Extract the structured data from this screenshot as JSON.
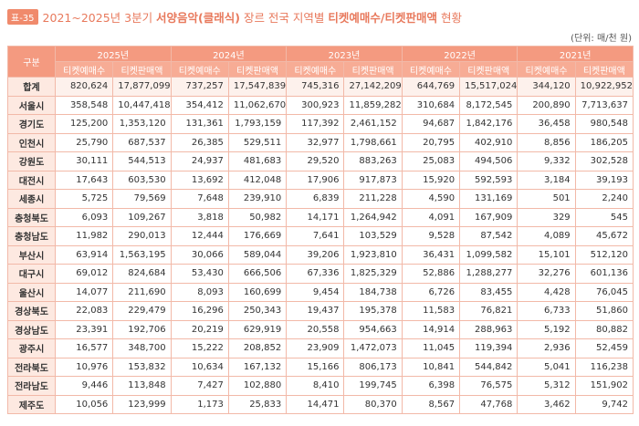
{
  "header": {
    "badge": "표-35",
    "title_parts": [
      "2021~2025년 3분기 ",
      "서양음악(클래식)",
      " 장르 전국 지역별 ",
      "티켓예매수/티켓판매액",
      " 현황"
    ],
    "unit": "(단위: 매/천 원)"
  },
  "table": {
    "corner": "구분",
    "years": [
      "2025년",
      "2024년",
      "2023년",
      "2022년",
      "2021년"
    ],
    "subcolumns": [
      "티켓예매수",
      "티켓판매액"
    ],
    "rows": [
      [
        "합계",
        "820,624",
        "17,877,099",
        "737,257",
        "17,547,839",
        "745,316",
        "27,142,209",
        "644,769",
        "15,517,024",
        "344,120",
        "10,922,952"
      ],
      [
        "서울시",
        "358,548",
        "10,447,418",
        "354,412",
        "11,062,670",
        "300,923",
        "11,859,282",
        "310,684",
        "8,172,545",
        "200,890",
        "7,713,637"
      ],
      [
        "경기도",
        "125,200",
        "1,353,120",
        "131,361",
        "1,793,159",
        "117,392",
        "2,461,152",
        "94,687",
        "1,842,176",
        "36,458",
        "980,548"
      ],
      [
        "인천시",
        "25,790",
        "687,537",
        "26,385",
        "529,511",
        "32,977",
        "1,798,661",
        "20,795",
        "402,910",
        "8,856",
        "186,205"
      ],
      [
        "강원도",
        "30,111",
        "544,513",
        "24,937",
        "481,683",
        "29,520",
        "883,263",
        "25,083",
        "494,506",
        "9,332",
        "302,528"
      ],
      [
        "대전시",
        "17,643",
        "603,530",
        "13,692",
        "412,048",
        "17,906",
        "917,873",
        "15,920",
        "592,593",
        "3,184",
        "39,193"
      ],
      [
        "세종시",
        "5,725",
        "79,569",
        "7,648",
        "239,910",
        "6,839",
        "211,228",
        "4,590",
        "131,169",
        "501",
        "2,240"
      ],
      [
        "충청북도",
        "6,093",
        "109,267",
        "3,818",
        "50,982",
        "14,171",
        "1,264,942",
        "4,091",
        "167,909",
        "329",
        "545"
      ],
      [
        "충청남도",
        "11,982",
        "290,013",
        "12,444",
        "176,669",
        "7,641",
        "103,529",
        "9,528",
        "87,542",
        "4,089",
        "45,672"
      ],
      [
        "부산시",
        "63,914",
        "1,563,195",
        "30,066",
        "589,044",
        "39,206",
        "1,923,810",
        "36,431",
        "1,099,582",
        "15,101",
        "512,120"
      ],
      [
        "대구시",
        "69,012",
        "824,684",
        "53,430",
        "666,506",
        "67,336",
        "1,825,329",
        "52,886",
        "1,288,277",
        "32,276",
        "601,136"
      ],
      [
        "울산시",
        "14,077",
        "211,690",
        "8,093",
        "160,699",
        "9,454",
        "184,738",
        "6,726",
        "83,455",
        "4,428",
        "76,045"
      ],
      [
        "경상북도",
        "22,083",
        "229,479",
        "16,296",
        "250,343",
        "19,437",
        "195,378",
        "11,583",
        "76,821",
        "6,733",
        "51,860"
      ],
      [
        "경상남도",
        "23,391",
        "192,706",
        "20,219",
        "629,919",
        "20,558",
        "954,663",
        "14,914",
        "288,963",
        "5,192",
        "80,882"
      ],
      [
        "광주시",
        "16,577",
        "348,700",
        "15,222",
        "208,852",
        "23,909",
        "1,472,073",
        "11,045",
        "119,394",
        "2,936",
        "52,459"
      ],
      [
        "전라북도",
        "10,976",
        "153,832",
        "10,634",
        "167,132",
        "15,166",
        "806,173",
        "10,841",
        "544,842",
        "5,041",
        "116,238"
      ],
      [
        "전라남도",
        "9,446",
        "113,848",
        "7,427",
        "102,880",
        "8,410",
        "199,745",
        "6,398",
        "76,575",
        "5,312",
        "151,902"
      ],
      [
        "제주도",
        "10,056",
        "123,999",
        "1,173",
        "25,833",
        "14,471",
        "80,370",
        "8,567",
        "47,768",
        "3,462",
        "9,742"
      ]
    ]
  }
}
